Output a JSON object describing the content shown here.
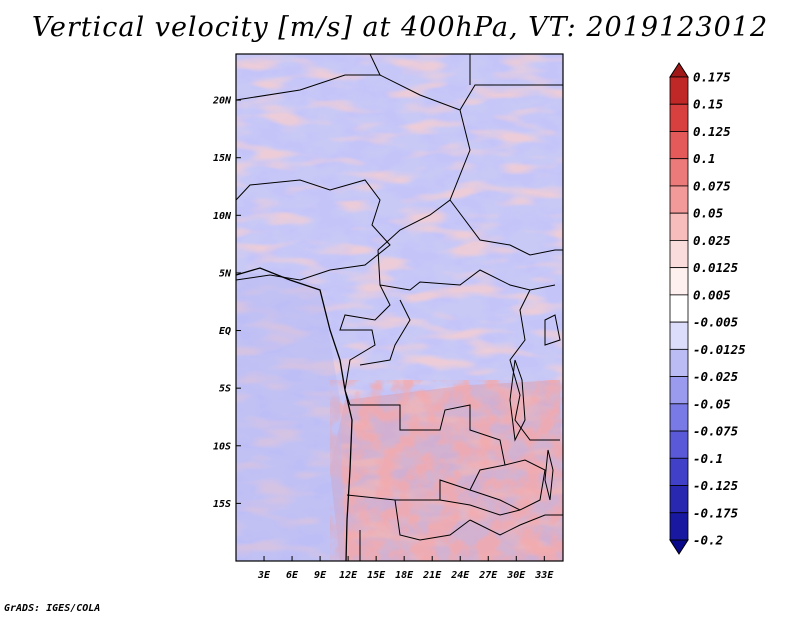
{
  "title": "Vertical velocity [m/s] at 400hPa, VT: 2019123012",
  "credit": "GrADS: IGES/COLA",
  "map": {
    "lat_range": [
      -20,
      24
    ],
    "lon_range": [
      0,
      35
    ],
    "lat_ticks": [
      {
        "value": 20,
        "label": "20N"
      },
      {
        "value": 15,
        "label": "15N"
      },
      {
        "value": 10,
        "label": "10N"
      },
      {
        "value": 5,
        "label": "5N"
      },
      {
        "value": 0,
        "label": "EQ"
      },
      {
        "value": -5,
        "label": "5S"
      },
      {
        "value": -10,
        "label": "10S"
      },
      {
        "value": -15,
        "label": "15S"
      }
    ],
    "lon_ticks": [
      {
        "value": 3,
        "label": "3E"
      },
      {
        "value": 6,
        "label": "6E"
      },
      {
        "value": 9,
        "label": "9E"
      },
      {
        "value": 12,
        "label": "12E"
      },
      {
        "value": 15,
        "label": "15E"
      },
      {
        "value": 18,
        "label": "18E"
      },
      {
        "value": 21,
        "label": "21E"
      },
      {
        "value": 24,
        "label": "24E"
      },
      {
        "value": 27,
        "label": "27E"
      },
      {
        "value": 30,
        "label": "30E"
      },
      {
        "value": 33,
        "label": "33E"
      }
    ]
  },
  "colorbar": {
    "labels": [
      "0.175",
      "0.15",
      "0.125",
      "0.1",
      "0.075",
      "0.05",
      "0.025",
      "0.0125",
      "0.005",
      "-0.005",
      "-0.0125",
      "-0.025",
      "-0.05",
      "-0.075",
      "-0.1",
      "-0.125",
      "-0.175",
      "-0.2"
    ],
    "colors": [
      "#a01818",
      "#c02828",
      "#d84040",
      "#e45a5a",
      "#ec7a7a",
      "#f29a9a",
      "#f7bcbc",
      "#fbdcdc",
      "#fff0f0",
      "#ffffff",
      "#dcdcfb",
      "#bcbcf5",
      "#9a9aef",
      "#7a7ae6",
      "#5a5ad8",
      "#4040c8",
      "#2828b0",
      "#1818a0",
      "#08088a"
    ]
  }
}
